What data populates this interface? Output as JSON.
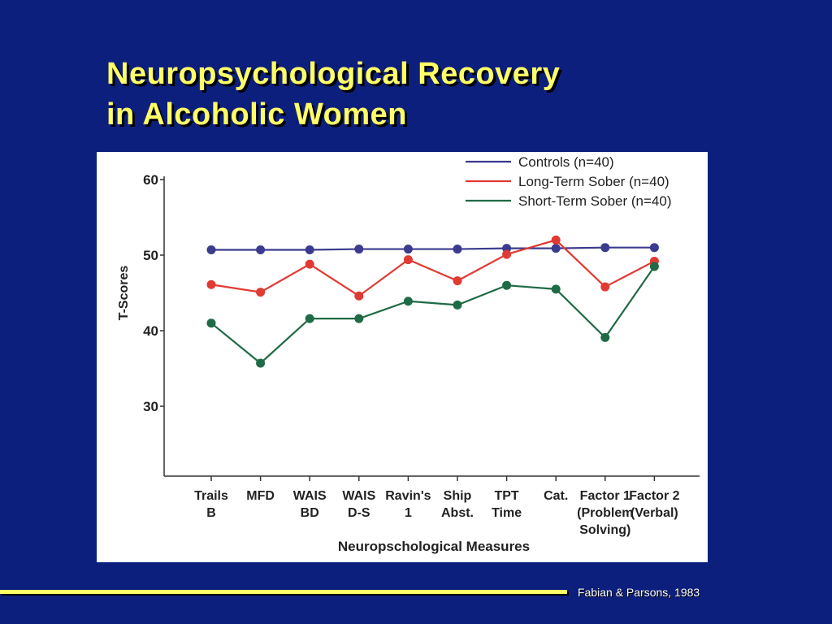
{
  "slide": {
    "title_line1": "Neuropsychological Recovery",
    "title_line2": "in Alcoholic Women",
    "citation": "Fabian & Parsons, 1983"
  },
  "colors": {
    "background": "#0d1f7c",
    "title": "#ffff66",
    "controls": "#3b3b8f",
    "long_term": "#e03a32",
    "short_term": "#1f6b45"
  },
  "chart_data": {
    "type": "line",
    "title": "",
    "xlabel": "Neuropschological Measures",
    "ylabel": "T-Scores",
    "ylim": [
      20,
      61
    ],
    "yticks": [
      30,
      40,
      50,
      60
    ],
    "grid": false,
    "legend_position": "top-right",
    "categories": [
      [
        "Trails",
        "B"
      ],
      [
        "MFD"
      ],
      [
        "WAIS",
        "BD"
      ],
      [
        "WAIS",
        "D-S"
      ],
      [
        "Ravin's",
        "1"
      ],
      [
        "Ship",
        "Abst."
      ],
      [
        "TPT",
        "Time"
      ],
      [
        "Cat."
      ],
      [
        "Factor 1",
        "(Problem",
        "Solving)"
      ],
      [
        "Factor 2",
        "(Verbal)"
      ]
    ],
    "series": [
      {
        "name": "Controls (n=40)",
        "color": "#3b3b8f",
        "values": [
          50.7,
          50.7,
          50.7,
          50.8,
          50.8,
          50.8,
          50.9,
          50.9,
          51.0,
          51.0
        ]
      },
      {
        "name": "Long-Term Sober (n=40)",
        "color": "#e03a32",
        "values": [
          46.1,
          45.1,
          48.8,
          44.6,
          49.4,
          46.6,
          50.1,
          52.0,
          45.8,
          49.2
        ]
      },
      {
        "name": "Short-Term Sober (n=40)",
        "color": "#1f6b45",
        "values": [
          41.0,
          35.7,
          41.6,
          41.6,
          43.9,
          43.4,
          46.0,
          45.5,
          39.1,
          48.5
        ]
      }
    ]
  }
}
